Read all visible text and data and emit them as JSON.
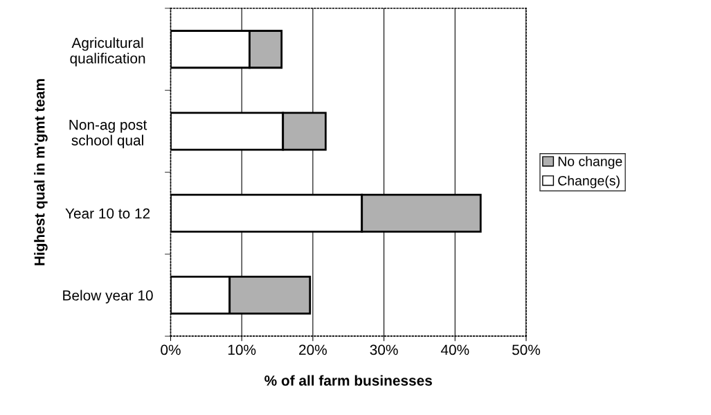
{
  "chart_data": {
    "type": "bar",
    "orientation": "horizontal",
    "stacked": true,
    "categories": [
      "Agricultural\nqualification",
      "Non-ag post\nschool qual",
      "Year 10 to 12",
      "Below year 10"
    ],
    "series": [
      {
        "name": "Change(s)",
        "color": "#ffffff",
        "values": [
          11.1,
          15.8,
          26.9,
          8.3
        ]
      },
      {
        "name": "No change",
        "color": "#b0b0b0",
        "values": [
          4.5,
          6.0,
          16.7,
          11.3
        ]
      }
    ],
    "xlim": [
      0,
      50
    ],
    "xticks": [
      {
        "value": 0,
        "label": "0%"
      },
      {
        "value": 10,
        "label": "10%"
      },
      {
        "value": 20,
        "label": "20%"
      },
      {
        "value": 30,
        "label": "30%"
      },
      {
        "value": 40,
        "label": "40%"
      },
      {
        "value": 50,
        "label": "50%"
      }
    ],
    "xlabel": "% of all farm businesses",
    "ylabel": "Highest qual in m'gmt team",
    "grid": "x",
    "legend": "right"
  }
}
